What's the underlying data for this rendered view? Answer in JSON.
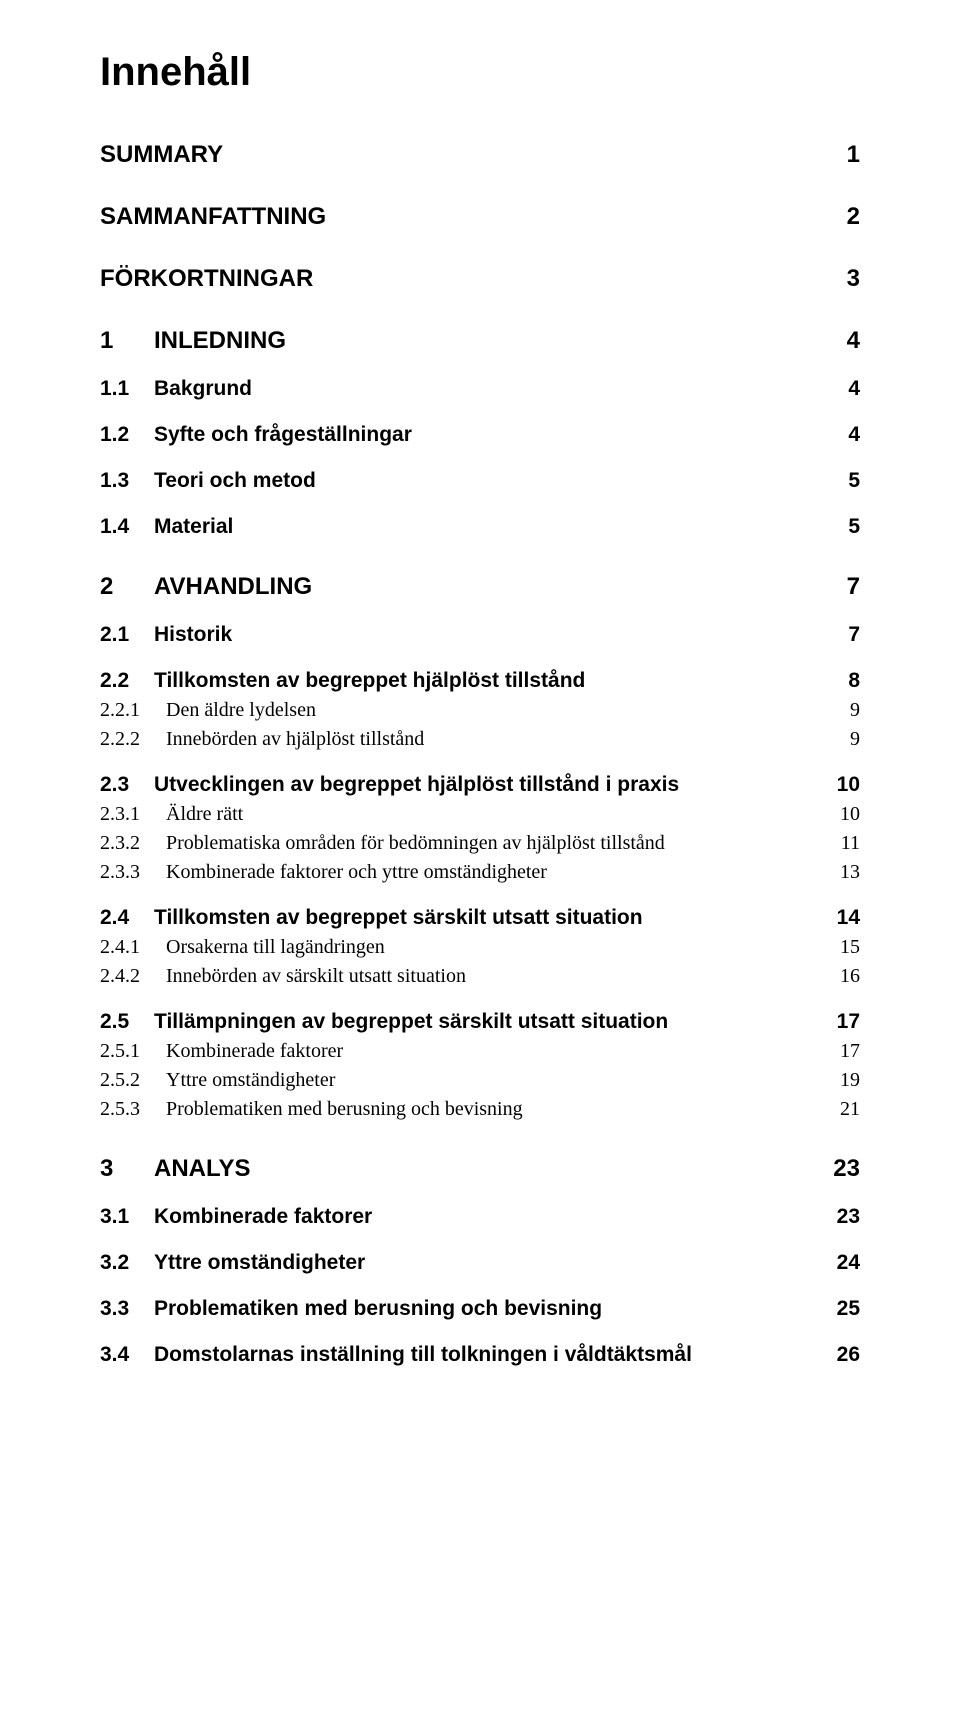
{
  "title": "Innehåll",
  "typography": {
    "title_fontsize_pt": 30,
    "lvl0_fontsize_pt": 18,
    "lvl1_fontsize_pt": 16,
    "lvl2_fontsize_pt": 15,
    "sans_family": "Arial",
    "serif_family": "Times New Roman",
    "text_color": "#000000",
    "background_color": "#ffffff"
  },
  "entries": [
    {
      "level": 0,
      "num": "",
      "label": "SUMMARY",
      "page": "1"
    },
    {
      "level": 0,
      "num": "",
      "label": "SAMMANFATTNING",
      "page": "2"
    },
    {
      "level": 0,
      "num": "",
      "label": "FÖRKORTNINGAR",
      "page": "3"
    },
    {
      "level": 0,
      "num": "1",
      "label": "INLEDNING",
      "page": "4"
    },
    {
      "level": 1,
      "num": "1.1",
      "label": "Bakgrund",
      "page": "4"
    },
    {
      "level": 1,
      "num": "1.2",
      "label": "Syfte och frågeställningar",
      "page": "4"
    },
    {
      "level": 1,
      "num": "1.3",
      "label": "Teori och metod",
      "page": "5"
    },
    {
      "level": 1,
      "num": "1.4",
      "label": "Material",
      "page": "5"
    },
    {
      "level": 0,
      "num": "2",
      "label": "AVHANDLING",
      "page": "7"
    },
    {
      "level": 1,
      "num": "2.1",
      "label": "Historik",
      "page": "7"
    },
    {
      "level": 1,
      "num": "2.2",
      "label": "Tillkomsten av begreppet hjälplöst tillstånd",
      "page": "8"
    },
    {
      "level": 2,
      "num": "2.2.1",
      "label": "Den äldre lydelsen",
      "page": "9"
    },
    {
      "level": 2,
      "num": "2.2.2",
      "label": "Innebörden av hjälplöst tillstånd",
      "page": "9"
    },
    {
      "level": 1,
      "num": "2.3",
      "label": "Utvecklingen av begreppet hjälplöst tillstånd i praxis",
      "page": "10"
    },
    {
      "level": 2,
      "num": "2.3.1",
      "label": "Äldre rätt",
      "page": "10"
    },
    {
      "level": 2,
      "num": "2.3.2",
      "label": "Problematiska områden för bedömningen av hjälplöst tillstånd",
      "page": "11"
    },
    {
      "level": 2,
      "num": "2.3.3",
      "label": "Kombinerade faktorer och yttre omständigheter",
      "page": "13"
    },
    {
      "level": 1,
      "num": "2.4",
      "label": "Tillkomsten av begreppet särskilt utsatt situation",
      "page": "14"
    },
    {
      "level": 2,
      "num": "2.4.1",
      "label": "Orsakerna till lagändringen",
      "page": "15"
    },
    {
      "level": 2,
      "num": "2.4.2",
      "label": "Innebörden av särskilt utsatt situation",
      "page": "16"
    },
    {
      "level": 1,
      "num": "2.5",
      "label": "Tillämpningen av begreppet särskilt utsatt situation",
      "page": "17"
    },
    {
      "level": 2,
      "num": "2.5.1",
      "label": "Kombinerade faktorer",
      "page": "17"
    },
    {
      "level": 2,
      "num": "2.5.2",
      "label": "Yttre omständigheter",
      "page": "19"
    },
    {
      "level": 2,
      "num": "2.5.3",
      "label": "Problematiken med berusning och bevisning",
      "page": "21"
    },
    {
      "level": 0,
      "num": "3",
      "label": "ANALYS",
      "page": "23"
    },
    {
      "level": 1,
      "num": "3.1",
      "label": "Kombinerade faktorer",
      "page": "23"
    },
    {
      "level": 1,
      "num": "3.2",
      "label": "Yttre omständigheter",
      "page": "24"
    },
    {
      "level": 1,
      "num": "3.3",
      "label": "Problematiken med berusning och bevisning",
      "page": "25"
    },
    {
      "level": 1,
      "num": "3.4",
      "label": "Domstolarnas inställning till tolkningen i våldtäktsmål",
      "page": "26"
    }
  ]
}
